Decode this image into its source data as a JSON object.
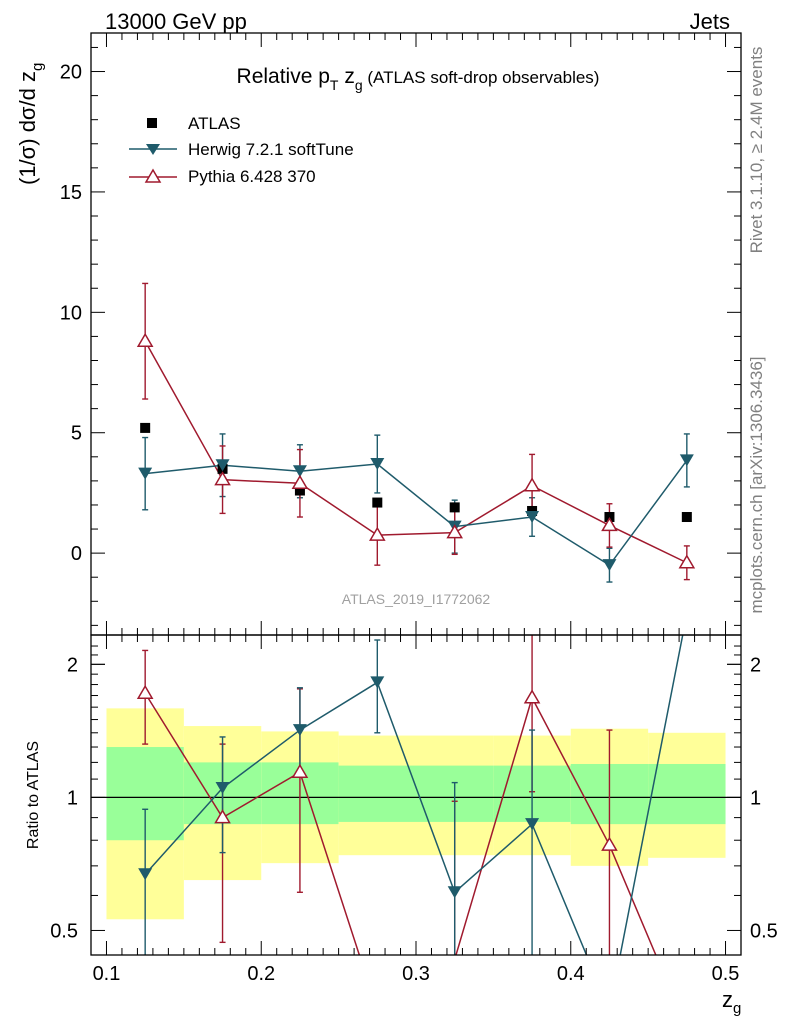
{
  "header": {
    "left": "13000 GeV pp",
    "right": "Jets"
  },
  "side_labels": {
    "rivet": "Rivet 3.1.10, ≥ 2.4M events",
    "mcplots": "mcplots.cern.ch [arXiv:1306.3436]"
  },
  "watermark": "ATLAS_2019_I1772062",
  "colors": {
    "atlas": "#000000",
    "herwig": "#1f5b6b",
    "pythia": "#a01a2e",
    "band_inner": "#99ff99",
    "band_outer": "#ffff99"
  },
  "chart_data": [
    {
      "type": "line",
      "panel": "main",
      "title": "Relative p_T z_g (ATLAS soft-drop observables)",
      "title_parts": {
        "a": "Relative p",
        "a_sub": "T",
        "b": " z",
        "b_sub": "g",
        "c": " (ATLAS soft-drop observables)"
      },
      "ylabel": "(1/σ) dσ/d z_g",
      "ylabel_parts": {
        "main": "(1/σ) dσ/d z",
        "sub": "g"
      },
      "xlabel": "z_g",
      "xlim": [
        0.09,
        0.51
      ],
      "ylim": [
        -3.4,
        21.6
      ],
      "yticks": [
        0,
        5,
        10,
        15,
        20
      ],
      "yticklabels": [
        "0",
        "5",
        "10",
        "15",
        "20"
      ],
      "legend": {
        "position": "top-left",
        "entries": [
          "ATLAS",
          "Herwig 7.2.1 softTune",
          "Pythia 6.428 370"
        ]
      },
      "x": [
        0.125,
        0.175,
        0.225,
        0.275,
        0.325,
        0.375,
        0.425,
        0.475
      ],
      "series": [
        {
          "name": "ATLAS",
          "values": [
            5.2,
            3.5,
            2.6,
            2.1,
            1.9,
            1.75,
            1.5,
            1.5
          ],
          "errors": [
            0,
            0,
            0,
            0,
            0,
            0,
            0,
            0
          ]
        },
        {
          "name": "Herwig 7.2.1 softTune",
          "values": [
            3.3,
            3.65,
            3.4,
            3.7,
            1.1,
            1.5,
            -0.5,
            3.85
          ],
          "errors": [
            1.5,
            1.3,
            1.1,
            1.2,
            1.1,
            0.8,
            0.7,
            1.1
          ]
        },
        {
          "name": "Pythia 6.428 370",
          "values": [
            8.8,
            3.05,
            2.9,
            0.75,
            0.85,
            2.8,
            1.15,
            -0.4
          ],
          "errors": [
            2.4,
            1.4,
            1.4,
            1.25,
            0.9,
            1.3,
            0.9,
            0.7
          ]
        }
      ]
    },
    {
      "type": "line",
      "panel": "ratio",
      "ylabel": "Ratio to ATLAS",
      "xlabel": "z_g",
      "xlim": [
        0.09,
        0.51
      ],
      "ylim": [
        0.44,
        2.33
      ],
      "yscale": "log",
      "yticks": [
        0.5,
        1,
        2
      ],
      "yticklabels": [
        "0.5",
        "1",
        "2"
      ],
      "xticks": [
        0.1,
        0.2,
        0.3,
        0.4,
        0.5
      ],
      "xticklabels": [
        "0.1",
        "0.2",
        "0.3",
        "0.4",
        "0.5"
      ],
      "bins": [
        [
          0.1,
          0.15
        ],
        [
          0.15,
          0.2
        ],
        [
          0.2,
          0.25
        ],
        [
          0.25,
          0.3
        ],
        [
          0.3,
          0.35
        ],
        [
          0.35,
          0.4
        ],
        [
          0.4,
          0.45
        ],
        [
          0.45,
          0.5
        ]
      ],
      "band_inner": [
        [
          0.8,
          1.3
        ],
        [
          0.87,
          1.2
        ],
        [
          0.87,
          1.2
        ],
        [
          0.88,
          1.18
        ],
        [
          0.88,
          1.18
        ],
        [
          0.88,
          1.18
        ],
        [
          0.87,
          1.19
        ],
        [
          0.87,
          1.19
        ]
      ],
      "band_outer": [
        [
          0.53,
          1.59
        ],
        [
          0.65,
          1.45
        ],
        [
          0.71,
          1.41
        ],
        [
          0.74,
          1.38
        ],
        [
          0.74,
          1.38
        ],
        [
          0.74,
          1.38
        ],
        [
          0.7,
          1.43
        ],
        [
          0.73,
          1.4
        ]
      ],
      "x": [
        0.125,
        0.175,
        0.225,
        0.275,
        0.325,
        0.375,
        0.425,
        0.475
      ],
      "series": [
        {
          "name": "Herwig 7.2.1 softTune",
          "values": [
            0.67,
            1.05,
            1.42,
            1.82,
            0.61,
            0.87,
            0.33,
            2.6
          ],
          "errors": [
            [
              0.28,
              0.27
            ],
            [
              0.3,
              0.32
            ],
            [
              0.3,
              0.35
            ],
            [
              0.42,
              0.45
            ],
            [
              0.35,
              0.47
            ],
            [
              0.5,
              0.55
            ],
            [
              0,
              0
            ],
            [
              0,
              0
            ]
          ]
        },
        {
          "name": "Pythia 6.428 370",
          "values": [
            1.72,
            0.9,
            1.14,
            0.33,
            0.43,
            1.68,
            0.78,
            0.3
          ],
          "errors": [
            [
              0.4,
              0.43
            ],
            [
              0.43,
              0.42
            ],
            [
              0.53,
              0.62
            ],
            [
              0,
              0
            ],
            [
              0.0,
              0.55
            ],
            [
              0.65,
              0.68
            ],
            [
              0.5,
              0.64
            ],
            [
              0,
              0
            ]
          ]
        }
      ]
    }
  ]
}
